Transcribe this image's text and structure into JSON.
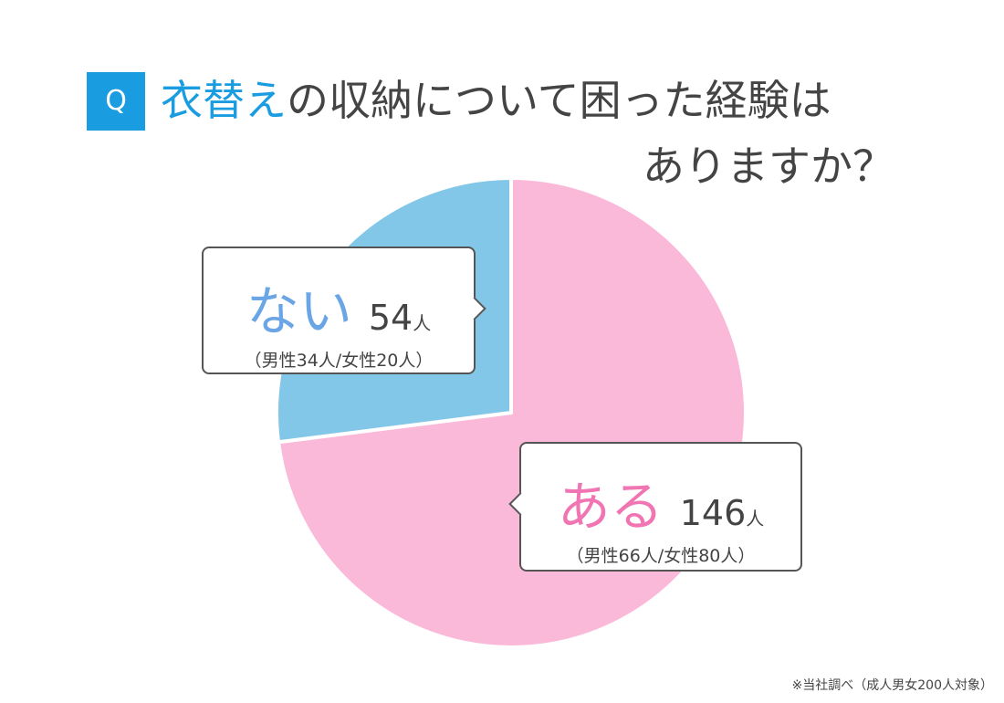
{
  "question": {
    "badge": "Q",
    "title_accent": "衣替え",
    "title_rest": "の収納について困った経験は",
    "title_line2": "ありますか？"
  },
  "chart_data": {
    "type": "pie",
    "categories": [
      "ある",
      "ない"
    ],
    "values": [
      146,
      54
    ],
    "units": "人",
    "breakdowns": [
      "（男性66人/女性80人）",
      "（男性34人/女性20人）"
    ],
    "colors": [
      "#fbb9da",
      "#82c6e8"
    ],
    "label_colors": [
      "#f075b2",
      "#6aa6e6"
    ]
  },
  "footnote": "※当社調べ（成人男女200人対象）"
}
